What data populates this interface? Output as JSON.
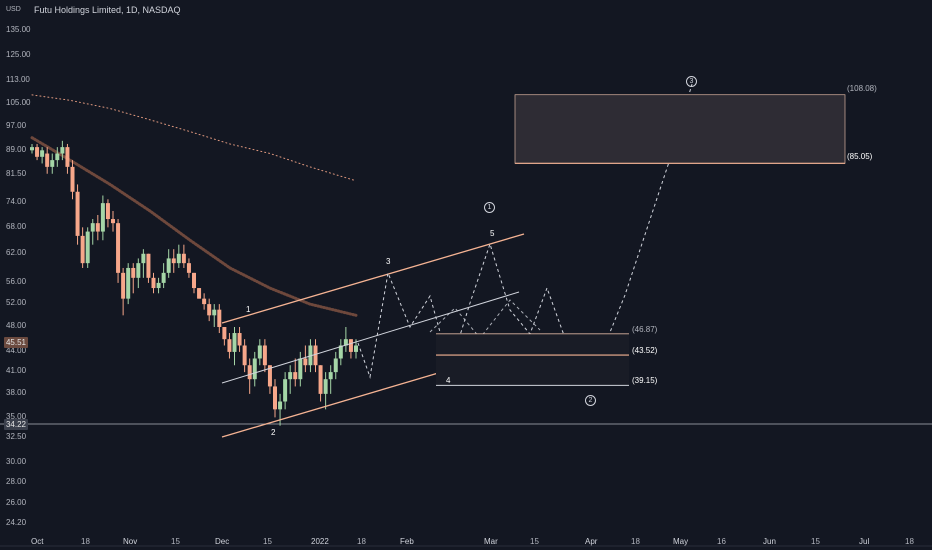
{
  "header": {
    "unit": "USD",
    "symbol": "Futu Holdings Limited, 1D, NASDAQ"
  },
  "y_axis": {
    "ticks": [
      "135.00",
      "125.00",
      "113.00",
      "105.00",
      "97.00",
      "89.00",
      "81.50",
      "74.00",
      "68.00",
      "62.00",
      "56.00",
      "52.00",
      "48.00",
      "44.00",
      "41.00",
      "38.00",
      "35.00",
      "32.50",
      "30.00",
      "28.00",
      "26.00",
      "24.20"
    ]
  },
  "x_axis": {
    "ticks": [
      "Oct",
      "18",
      "Nov",
      "15",
      "Dec",
      "15",
      "2022",
      "18",
      "Feb",
      "Mar",
      "15",
      "Apr",
      "18",
      "May",
      "16",
      "Jun",
      "15",
      "Jul",
      "18"
    ]
  },
  "price_labels": {
    "last": "45.51",
    "support": "34.22"
  },
  "levels": {
    "top": "(108.08)",
    "upper": "(85.05)",
    "l1": "(46.87)",
    "l2": "(43.52)",
    "l3": "(39.15)"
  },
  "wave_labels": {
    "w1": "1",
    "w2": "2",
    "w3": "3",
    "w4": "4",
    "w5": "5"
  },
  "circled": {
    "c1": "1",
    "c2": "2",
    "c3": "3"
  },
  "colors": {
    "up": "#a5d6a7",
    "down": "#f7a78a",
    "channel": "#f5b393",
    "background": "#131722"
  },
  "chart_data": {
    "type": "candlestick",
    "title": "Futu Holdings Limited, 1D, NASDAQ",
    "xlabel": "",
    "ylabel": "USD",
    "ylim": [
      24.2,
      135
    ],
    "y_scale": "log",
    "dates_approx": "2021-10-01 to 2022-01-19",
    "ohlc": [
      [
        89,
        91,
        88,
        90
      ],
      [
        90,
        91,
        86,
        87
      ],
      [
        87,
        90,
        85,
        89
      ],
      [
        88,
        90,
        82,
        84
      ],
      [
        84,
        88,
        82,
        86
      ],
      [
        86,
        90,
        84,
        88
      ],
      [
        88,
        92,
        86,
        90
      ],
      [
        90,
        91,
        82,
        84
      ],
      [
        84,
        86,
        75,
        77
      ],
      [
        77,
        79,
        64,
        66
      ],
      [
        66,
        68,
        59,
        60
      ],
      [
        60,
        68,
        59,
        67
      ],
      [
        67,
        70,
        64,
        69
      ],
      [
        69,
        71,
        65,
        67
      ],
      [
        67,
        76,
        65,
        74
      ],
      [
        74,
        75,
        68,
        70
      ],
      [
        70,
        72,
        67,
        69
      ],
      [
        69,
        70,
        56,
        58
      ],
      [
        58,
        59,
        50,
        53
      ],
      [
        53,
        60,
        52,
        59
      ],
      [
        59,
        60,
        54,
        57
      ],
      [
        57,
        61,
        55,
        60
      ],
      [
        60,
        63,
        57,
        62
      ],
      [
        62,
        62,
        56,
        57
      ],
      [
        57,
        58,
        54,
        55
      ],
      [
        55,
        57,
        54,
        56
      ],
      [
        56,
        60,
        55,
        58
      ],
      [
        58,
        63,
        57,
        61
      ],
      [
        61,
        63,
        58,
        60
      ],
      [
        60,
        64,
        59,
        62
      ],
      [
        62,
        64,
        59,
        60
      ],
      [
        60,
        61,
        57,
        58
      ],
      [
        58,
        58,
        54,
        55
      ],
      [
        55,
        55,
        53,
        53
      ],
      [
        53,
        54,
        51,
        52
      ],
      [
        52,
        53,
        49,
        50
      ],
      [
        50,
        52,
        48,
        51
      ],
      [
        51,
        52,
        47,
        48
      ],
      [
        48,
        48,
        45,
        46
      ],
      [
        46,
        47,
        43,
        44
      ],
      [
        44,
        48,
        42,
        47
      ],
      [
        47,
        48,
        44,
        45
      ],
      [
        45,
        46,
        41,
        42
      ],
      [
        42,
        43,
        38,
        40
      ],
      [
        40,
        44,
        39,
        43
      ],
      [
        43,
        46,
        42,
        45
      ],
      [
        45,
        46,
        41,
        42
      ],
      [
        42,
        42,
        38,
        39
      ],
      [
        39,
        40,
        35,
        36
      ],
      [
        36,
        38,
        34,
        37
      ],
      [
        37,
        41,
        36,
        40
      ],
      [
        40,
        42,
        38,
        41
      ],
      [
        41,
        43,
        39,
        40
      ],
      [
        40,
        44,
        39,
        43
      ],
      [
        43,
        45,
        41,
        42
      ],
      [
        42,
        46,
        41,
        45
      ],
      [
        45,
        46,
        41,
        42
      ],
      [
        42,
        42,
        37,
        38
      ],
      [
        38,
        41,
        36,
        40
      ],
      [
        40,
        42,
        38,
        41
      ],
      [
        41,
        44,
        40,
        43
      ],
      [
        43,
        46,
        42,
        45
      ],
      [
        45,
        48,
        44,
        46
      ],
      [
        46,
        46,
        43,
        44
      ],
      [
        44,
        46,
        43,
        45
      ]
    ],
    "moving_averages": [
      {
        "name": "",
        "values": [
          108,
          106,
          103,
          99,
          95,
          91,
          88,
          84,
          80
        ]
      },
      {
        "name": "",
        "values": [
          93,
          86,
          79,
          72,
          65,
          59,
          55,
          52,
          50
        ]
      }
    ],
    "projection": [
      {
        "label": "3",
        "price": 57
      },
      {
        "label": "4",
        "price": 40
      },
      {
        "label": "5",
        "price": 62
      },
      {
        "label": "2",
        "price": 39.15
      },
      {
        "label": "3",
        "price": 108.08
      }
    ],
    "levels": [
      108.08,
      85.05,
      46.87,
      43.52,
      39.15,
      34.22
    ]
  }
}
